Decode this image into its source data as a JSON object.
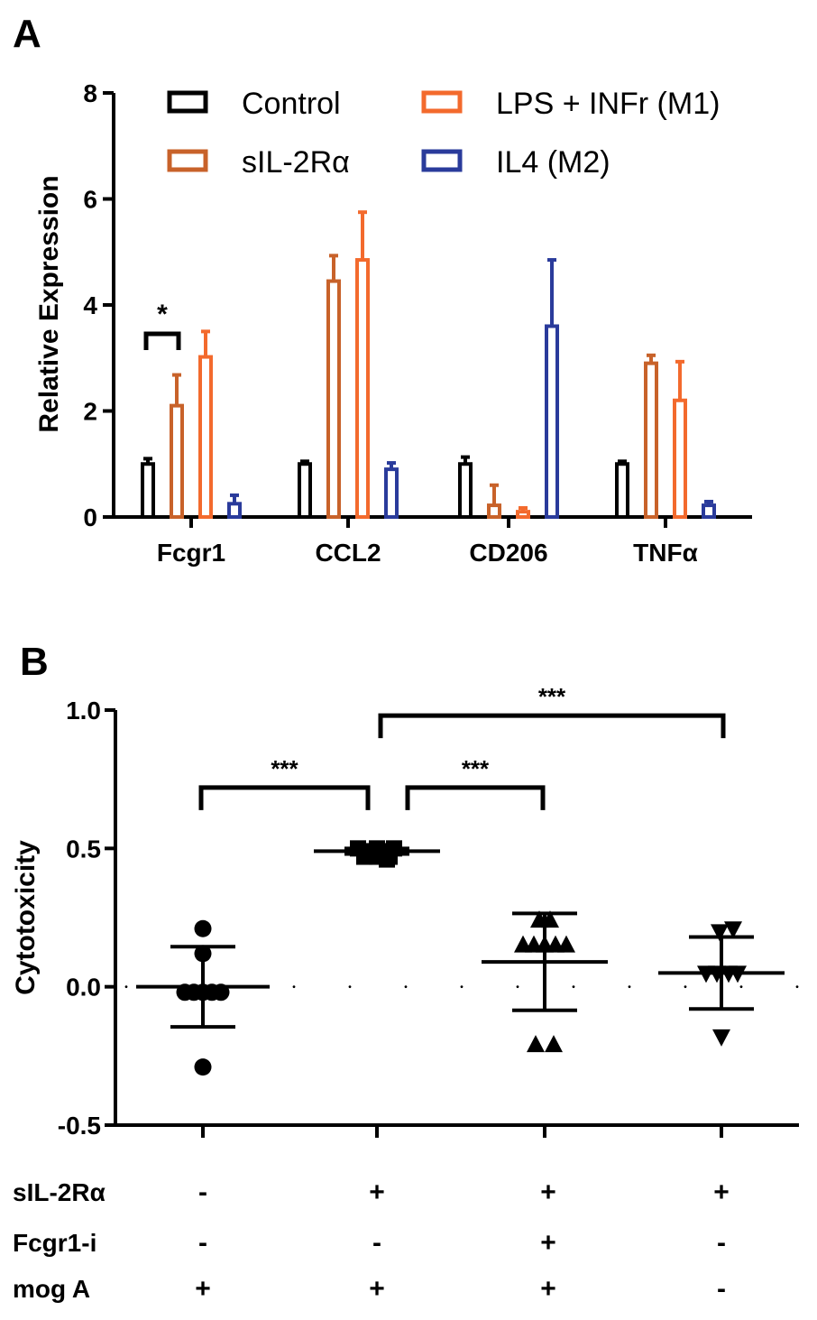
{
  "colors": {
    "control": "#000000",
    "sil2ra": "#c8622a",
    "lps": "#f36a2d",
    "il4": "#2a3b9b",
    "ink": "#000000"
  },
  "chart_data": [
    {
      "panel_label": "A",
      "type": "bar",
      "ylabel": "Relative Expression",
      "ylim": [
        0,
        8
      ],
      "yticks": [
        "0",
        "2",
        "4",
        "6",
        "8"
      ],
      "categories": [
        "Fcgr1",
        "CCL2",
        "CD206",
        "TNFα"
      ],
      "series": [
        {
          "name": "Control",
          "color_key": "control",
          "values": [
            1.0,
            1.0,
            1.0,
            1.0
          ],
          "errors": [
            0.1,
            0.05,
            0.13,
            0.05
          ]
        },
        {
          "name": "sIL-2Rα",
          "color_key": "sil2ra",
          "values": [
            2.1,
            4.45,
            0.22,
            2.9
          ],
          "errors": [
            0.58,
            0.48,
            0.38,
            0.15
          ]
        },
        {
          "name": "LPS + INFr (M1)",
          "color_key": "lps",
          "values": [
            3.02,
            4.85,
            0.1,
            2.2
          ],
          "errors": [
            0.48,
            0.9,
            0.07,
            0.73
          ]
        },
        {
          "name": "IL4 (M2)",
          "color_key": "il4",
          "values": [
            0.25,
            0.9,
            3.6,
            0.22
          ],
          "errors": [
            0.16,
            0.12,
            1.25,
            0.07
          ]
        }
      ],
      "legend": [
        "Control",
        "sIL-2Rα",
        "LPS + INFr (M1)",
        "IL4 (M2)"
      ],
      "annotations": [
        {
          "text": "*",
          "between": [
            "Control",
            "sIL-2Rα"
          ],
          "category": "Fcgr1"
        }
      ]
    },
    {
      "panel_label": "B",
      "type": "scatter",
      "ylabel": "Cytotoxicity",
      "ylim": [
        -0.5,
        1.0
      ],
      "yticks": [
        "-0.5",
        "0.0",
        "0.5",
        "1.0"
      ],
      "groups": [
        {
          "marker": "circle",
          "mean": 0.0,
          "sd": 0.145,
          "points": [
            [
              -0.2,
              -0.02
            ],
            [
              -0.1,
              -0.02
            ],
            [
              0.0,
              -0.02
            ],
            [
              0.1,
              -0.02
            ],
            [
              0.2,
              -0.02
            ],
            [
              0.0,
              0.21
            ],
            [
              0.0,
              0.12
            ],
            [
              0.0,
              -0.29
            ]
          ]
        },
        {
          "marker": "square",
          "mean": 0.49,
          "sd": 0.01,
          "points": [
            [
              -0.21,
              0.5
            ],
            [
              -0.14,
              0.47
            ],
            [
              -0.07,
              0.49
            ],
            [
              0.0,
              0.47
            ],
            [
              0.07,
              0.49
            ],
            [
              0.14,
              0.47
            ],
            [
              0.19,
              0.5
            ],
            [
              0.0,
              0.5
            ],
            [
              0.11,
              0.46
            ]
          ]
        },
        {
          "marker": "triangle-up",
          "mean": 0.09,
          "sd": 0.175,
          "points": [
            [
              -0.24,
              0.15
            ],
            [
              -0.12,
              0.15
            ],
            [
              0.0,
              0.15
            ],
            [
              0.12,
              0.15
            ],
            [
              0.24,
              0.15
            ],
            [
              -0.06,
              0.24
            ],
            [
              0.06,
              0.24
            ],
            [
              -0.1,
              -0.21
            ],
            [
              0.1,
              -0.21
            ]
          ]
        },
        {
          "marker": "triangle-down",
          "mean": 0.05,
          "sd": 0.13,
          "points": [
            [
              -0.17,
              0.05
            ],
            [
              -0.05,
              0.05
            ],
            [
              0.08,
              0.05
            ],
            [
              0.18,
              0.05
            ],
            [
              -0.02,
              0.2
            ],
            [
              0.13,
              0.21
            ],
            [
              0.0,
              -0.18
            ]
          ]
        }
      ],
      "brackets": [
        {
          "from": 0,
          "to": 1,
          "level": 0.72,
          "text": "***"
        },
        {
          "from": 1,
          "to": 2,
          "level": 0.72,
          "text": "***"
        },
        {
          "from": 1,
          "to": 3,
          "level": 0.98,
          "text": "***"
        }
      ]
    }
  ],
  "condition_table": {
    "rows": [
      {
        "label": "sIL-2Rα",
        "values": [
          "-",
          "+",
          "+",
          "+"
        ]
      },
      {
        "label": "Fcgr1-i",
        "values": [
          "-",
          "-",
          "+",
          "-"
        ]
      },
      {
        "label": "mog A",
        "values": [
          "+",
          "+",
          "+",
          "-"
        ]
      }
    ]
  }
}
